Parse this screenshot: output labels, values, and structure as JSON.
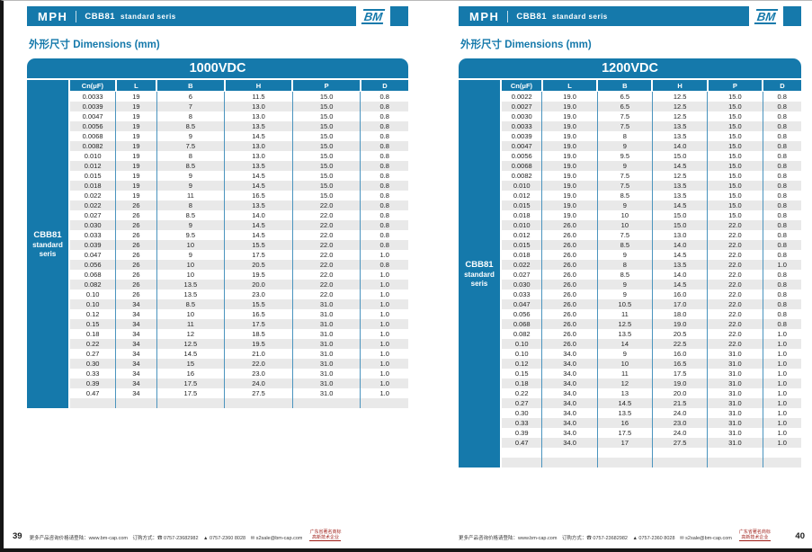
{
  "colors": {
    "accent": "#1579ab",
    "row_alt": "#e9e9e9",
    "grid_line": "#4b94be",
    "stamp_red": "#9e1b15"
  },
  "header": {
    "brand": "MPH",
    "series_name": "CBB81",
    "series_sub": "standard seris",
    "logo": "BM"
  },
  "section_title": "外形尺寸 Dimensions (mm)",
  "footer": {
    "info": "更多产品咨询价格请登陆：www.bm-cap.com　订购方式：☎ 0757-23682982　▲ 0757-2360 8028　✉ s2sale@bm-cap.com",
    "stamp_line1": "广东省著名商标",
    "stamp_line2": "高新技术企业"
  },
  "pages": [
    {
      "page_number": "39",
      "voltage": "1000VDC",
      "sidebar": [
        "CBB81",
        "standard",
        "seris"
      ],
      "columns": [
        "Cn(μF)",
        "L",
        "B",
        "H",
        "P",
        "D"
      ],
      "trailing_empty_rows": 1,
      "rows": [
        [
          "0.0033",
          "19",
          "6",
          "11.5",
          "15.0",
          "0.8"
        ],
        [
          "0.0039",
          "19",
          "7",
          "13.0",
          "15.0",
          "0.8"
        ],
        [
          "0.0047",
          "19",
          "8",
          "13.0",
          "15.0",
          "0.8"
        ],
        [
          "0.0056",
          "19",
          "8.5",
          "13.5",
          "15.0",
          "0.8"
        ],
        [
          "0.0068",
          "19",
          "9",
          "14.5",
          "15.0",
          "0.8"
        ],
        [
          "0.0082",
          "19",
          "7.5",
          "13.0",
          "15.0",
          "0.8"
        ],
        [
          "0.010",
          "19",
          "8",
          "13.0",
          "15.0",
          "0.8"
        ],
        [
          "0.012",
          "19",
          "8.5",
          "13.5",
          "15.0",
          "0.8"
        ],
        [
          "0.015",
          "19",
          "9",
          "14.5",
          "15.0",
          "0.8"
        ],
        [
          "0.018",
          "19",
          "9",
          "14.5",
          "15.0",
          "0.8"
        ],
        [
          "0.022",
          "19",
          "11",
          "16.5",
          "15.0",
          "0.8"
        ],
        [
          "0.022",
          "26",
          "8",
          "13.5",
          "22.0",
          "0.8"
        ],
        [
          "0.027",
          "26",
          "8.5",
          "14.0",
          "22.0",
          "0.8"
        ],
        [
          "0.030",
          "26",
          "9",
          "14.5",
          "22.0",
          "0.8"
        ],
        [
          "0.033",
          "26",
          "9.5",
          "14.5",
          "22.0",
          "0.8"
        ],
        [
          "0.039",
          "26",
          "10",
          "15.5",
          "22.0",
          "0.8"
        ],
        [
          "0.047",
          "26",
          "9",
          "17.5",
          "22.0",
          "1.0"
        ],
        [
          "0.056",
          "26",
          "10",
          "20.5",
          "22.0",
          "0.8"
        ],
        [
          "0.068",
          "26",
          "10",
          "19.5",
          "22.0",
          "1.0"
        ],
        [
          "0.082",
          "26",
          "13.5",
          "20.0",
          "22.0",
          "1.0"
        ],
        [
          "0.10",
          "26",
          "13.5",
          "23.0",
          "22.0",
          "1.0"
        ],
        [
          "0.10",
          "34",
          "8.5",
          "15.5",
          "31.0",
          "1.0"
        ],
        [
          "0.12",
          "34",
          "10",
          "16.5",
          "31.0",
          "1.0"
        ],
        [
          "0.15",
          "34",
          "11",
          "17.5",
          "31.0",
          "1.0"
        ],
        [
          "0.18",
          "34",
          "12",
          "18.5",
          "31.0",
          "1.0"
        ],
        [
          "0.22",
          "34",
          "12.5",
          "19.5",
          "31.0",
          "1.0"
        ],
        [
          "0.27",
          "34",
          "14.5",
          "21.0",
          "31.0",
          "1.0"
        ],
        [
          "0.30",
          "34",
          "15",
          "22.0",
          "31.0",
          "1.0"
        ],
        [
          "0.33",
          "34",
          "16",
          "23.0",
          "31.0",
          "1.0"
        ],
        [
          "0.39",
          "34",
          "17.5",
          "24.0",
          "31.0",
          "1.0"
        ],
        [
          "0.47",
          "34",
          "17.5",
          "27.5",
          "31.0",
          "1.0"
        ]
      ]
    },
    {
      "page_number": "40",
      "voltage": "1200VDC",
      "sidebar": [
        "CBB81",
        "standard",
        "seris"
      ],
      "columns": [
        "Cn(μF)",
        "L",
        "B",
        "H",
        "P",
        "D"
      ],
      "trailing_empty_rows": 2,
      "rows": [
        [
          "0.0022",
          "19.0",
          "6.5",
          "12.5",
          "15.0",
          "0.8"
        ],
        [
          "0.0027",
          "19.0",
          "6.5",
          "12.5",
          "15.0",
          "0.8"
        ],
        [
          "0.0030",
          "19.0",
          "7.5",
          "12.5",
          "15.0",
          "0.8"
        ],
        [
          "0.0033",
          "19.0",
          "7.5",
          "13.5",
          "15.0",
          "0.8"
        ],
        [
          "0.0039",
          "19.0",
          "8",
          "13.5",
          "15.0",
          "0.8"
        ],
        [
          "0.0047",
          "19.0",
          "9",
          "14.0",
          "15.0",
          "0.8"
        ],
        [
          "0.0056",
          "19.0",
          "9.5",
          "15.0",
          "15.0",
          "0.8"
        ],
        [
          "0.0068",
          "19.0",
          "9",
          "14.5",
          "15.0",
          "0.8"
        ],
        [
          "0.0082",
          "19.0",
          "7.5",
          "12.5",
          "15.0",
          "0.8"
        ],
        [
          "0.010",
          "19.0",
          "7.5",
          "13.5",
          "15.0",
          "0.8"
        ],
        [
          "0.012",
          "19.0",
          "8.5",
          "13.5",
          "15.0",
          "0.8"
        ],
        [
          "0.015",
          "19.0",
          "9",
          "14.5",
          "15.0",
          "0.8"
        ],
        [
          "0.018",
          "19.0",
          "10",
          "15.0",
          "15.0",
          "0.8"
        ],
        [
          "0.010",
          "26.0",
          "10",
          "15.0",
          "22.0",
          "0.8"
        ],
        [
          "0.012",
          "26.0",
          "7.5",
          "13.0",
          "22.0",
          "0.8"
        ],
        [
          "0.015",
          "26.0",
          "8.5",
          "14.0",
          "22.0",
          "0.8"
        ],
        [
          "0.018",
          "26.0",
          "9",
          "14.5",
          "22.0",
          "0.8"
        ],
        [
          "0.022",
          "26.0",
          "8",
          "13.5",
          "22.0",
          "1.0"
        ],
        [
          "0.027",
          "26.0",
          "8.5",
          "14.0",
          "22.0",
          "0.8"
        ],
        [
          "0.030",
          "26.0",
          "9",
          "14.5",
          "22.0",
          "0.8"
        ],
        [
          "0.033",
          "26.0",
          "9",
          "16.0",
          "22.0",
          "0.8"
        ],
        [
          "0.047",
          "26.0",
          "10.5",
          "17.0",
          "22.0",
          "0.8"
        ],
        [
          "0.056",
          "26.0",
          "11",
          "18.0",
          "22.0",
          "0.8"
        ],
        [
          "0.068",
          "26.0",
          "12.5",
          "19.0",
          "22.0",
          "0.8"
        ],
        [
          "0.082",
          "26.0",
          "13.5",
          "20.5",
          "22.0",
          "1.0"
        ],
        [
          "0.10",
          "26.0",
          "14",
          "22.5",
          "22.0",
          "1.0"
        ],
        [
          "0.10",
          "34.0",
          "9",
          "16.0",
          "31.0",
          "1.0"
        ],
        [
          "0.12",
          "34.0",
          "10",
          "16.5",
          "31.0",
          "1.0"
        ],
        [
          "0.15",
          "34.0",
          "11",
          "17.5",
          "31.0",
          "1.0"
        ],
        [
          "0.18",
          "34.0",
          "12",
          "19.0",
          "31.0",
          "1.0"
        ],
        [
          "0.22",
          "34.0",
          "13",
          "20.0",
          "31.0",
          "1.0"
        ],
        [
          "0.27",
          "34.0",
          "14.5",
          "21.5",
          "31.0",
          "1.0"
        ],
        [
          "0.30",
          "34.0",
          "13.5",
          "24.0",
          "31.0",
          "1.0"
        ],
        [
          "0.33",
          "34.0",
          "16",
          "23.0",
          "31.0",
          "1.0"
        ],
        [
          "0.39",
          "34.0",
          "17.5",
          "24.0",
          "31.0",
          "1.0"
        ],
        [
          "0.47",
          "34.0",
          "17",
          "27.5",
          "31.0",
          "1.0"
        ]
      ]
    }
  ]
}
